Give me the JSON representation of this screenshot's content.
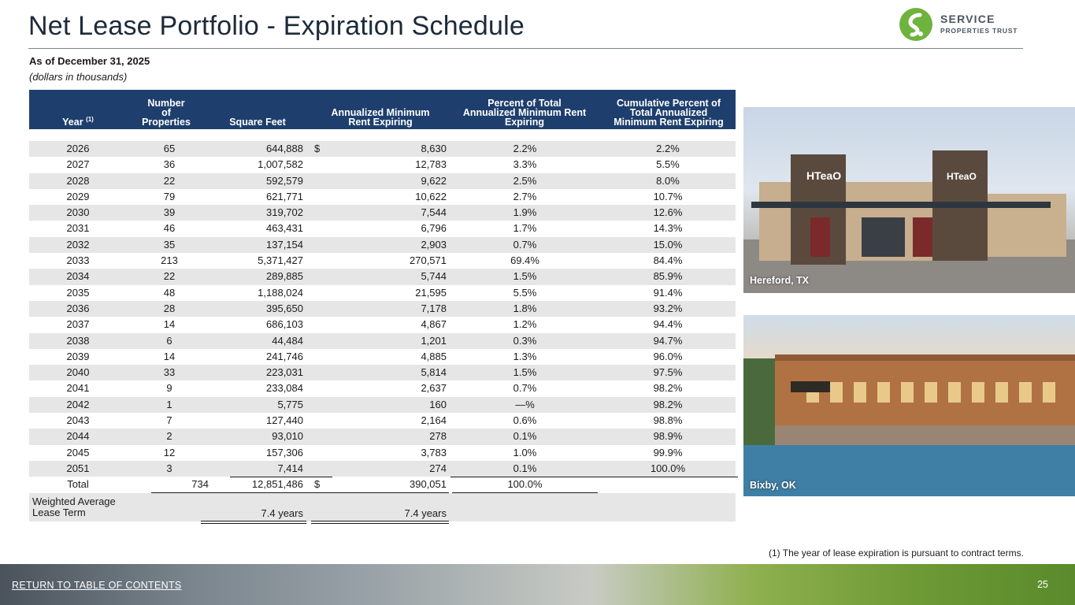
{
  "header": {
    "title": "Net Lease Portfolio - Expiration Schedule",
    "as_of": "As of December 31, 2025",
    "units": "(dollars in thousands)"
  },
  "logo": {
    "line1": "SERVICE",
    "line2": "PROPERTIES TRUST",
    "mark": "brand-swirl-icon",
    "color": "#6fb33f"
  },
  "table": {
    "columns": {
      "year": "Year",
      "year_note": "(1)",
      "number": [
        "Number",
        "of",
        "Properties"
      ],
      "sqft": "Square Feet",
      "rent": [
        "Annualized Minimum",
        "Rent Expiring"
      ],
      "pct": [
        "Percent of Total",
        "Annualized Minimum Rent",
        "Expiring"
      ],
      "cum": [
        "Cumulative Percent of",
        "Total Annualized",
        "Minimum Rent Expiring"
      ]
    },
    "dollar_sign": "$",
    "rows": [
      {
        "year": "2026",
        "num": "65",
        "sqft": "644,888",
        "rent": "8,630",
        "pct": "2.2%",
        "cum": "2.2%"
      },
      {
        "year": "2027",
        "num": "36",
        "sqft": "1,007,582",
        "rent": "12,783",
        "pct": "3.3%",
        "cum": "5.5%"
      },
      {
        "year": "2028",
        "num": "22",
        "sqft": "592,579",
        "rent": "9,622",
        "pct": "2.5%",
        "cum": "8.0%"
      },
      {
        "year": "2029",
        "num": "79",
        "sqft": "621,771",
        "rent": "10,622",
        "pct": "2.7%",
        "cum": "10.7%"
      },
      {
        "year": "2030",
        "num": "39",
        "sqft": "319,702",
        "rent": "7,544",
        "pct": "1.9%",
        "cum": "12.6%"
      },
      {
        "year": "2031",
        "num": "46",
        "sqft": "463,431",
        "rent": "6,796",
        "pct": "1.7%",
        "cum": "14.3%"
      },
      {
        "year": "2032",
        "num": "35",
        "sqft": "137,154",
        "rent": "2,903",
        "pct": "0.7%",
        "cum": "15.0%"
      },
      {
        "year": "2033",
        "num": "213",
        "sqft": "5,371,427",
        "rent": "270,571",
        "pct": "69.4%",
        "cum": "84.4%"
      },
      {
        "year": "2034",
        "num": "22",
        "sqft": "289,885",
        "rent": "5,744",
        "pct": "1.5%",
        "cum": "85.9%"
      },
      {
        "year": "2035",
        "num": "48",
        "sqft": "1,188,024",
        "rent": "21,595",
        "pct": "5.5%",
        "cum": "91.4%"
      },
      {
        "year": "2036",
        "num": "28",
        "sqft": "395,650",
        "rent": "7,178",
        "pct": "1.8%",
        "cum": "93.2%"
      },
      {
        "year": "2037",
        "num": "14",
        "sqft": "686,103",
        "rent": "4,867",
        "pct": "1.2%",
        "cum": "94.4%"
      },
      {
        "year": "2038",
        "num": "6",
        "sqft": "44,484",
        "rent": "1,201",
        "pct": "0.3%",
        "cum": "94.7%"
      },
      {
        "year": "2039",
        "num": "14",
        "sqft": "241,746",
        "rent": "4,885",
        "pct": "1.3%",
        "cum": "96.0%"
      },
      {
        "year": "2040",
        "num": "33",
        "sqft": "223,031",
        "rent": "5,814",
        "pct": "1.5%",
        "cum": "97.5%"
      },
      {
        "year": "2041",
        "num": "9",
        "sqft": "233,084",
        "rent": "2,637",
        "pct": "0.7%",
        "cum": "98.2%"
      },
      {
        "year": "2042",
        "num": "1",
        "sqft": "5,775",
        "rent": "160",
        "pct": "—%",
        "cum": "98.2%"
      },
      {
        "year": "2043",
        "num": "7",
        "sqft": "127,440",
        "rent": "2,164",
        "pct": "0.6%",
        "cum": "98.8%"
      },
      {
        "year": "2044",
        "num": "2",
        "sqft": "93,010",
        "rent": "278",
        "pct": "0.1%",
        "cum": "98.9%"
      },
      {
        "year": "2045",
        "num": "12",
        "sqft": "157,306",
        "rent": "3,783",
        "pct": "1.0%",
        "cum": "99.9%"
      },
      {
        "year": "2051",
        "num": "3",
        "sqft": "7,414",
        "rent": "274",
        "pct": "0.1%",
        "cum": "100.0%"
      }
    ],
    "total": {
      "label": "Total",
      "num": "734",
      "sqft": "12,851,486",
      "rent": "390,051",
      "pct": "100.0%"
    },
    "wal": {
      "label_line1": "Weighted Average",
      "label_line2": "Lease Term",
      "by_sqft": "7.4 years",
      "by_rent": "7.4 years"
    }
  },
  "photos": [
    {
      "caption": "Hereford, TX"
    },
    {
      "caption": "Bixby, OK"
    }
  ],
  "footnote": "(1)   The year of lease expiration is pursuant to contract terms.",
  "footer": {
    "toc_link": "RETURN TO TABLE OF CONTENTS",
    "page": "25"
  }
}
